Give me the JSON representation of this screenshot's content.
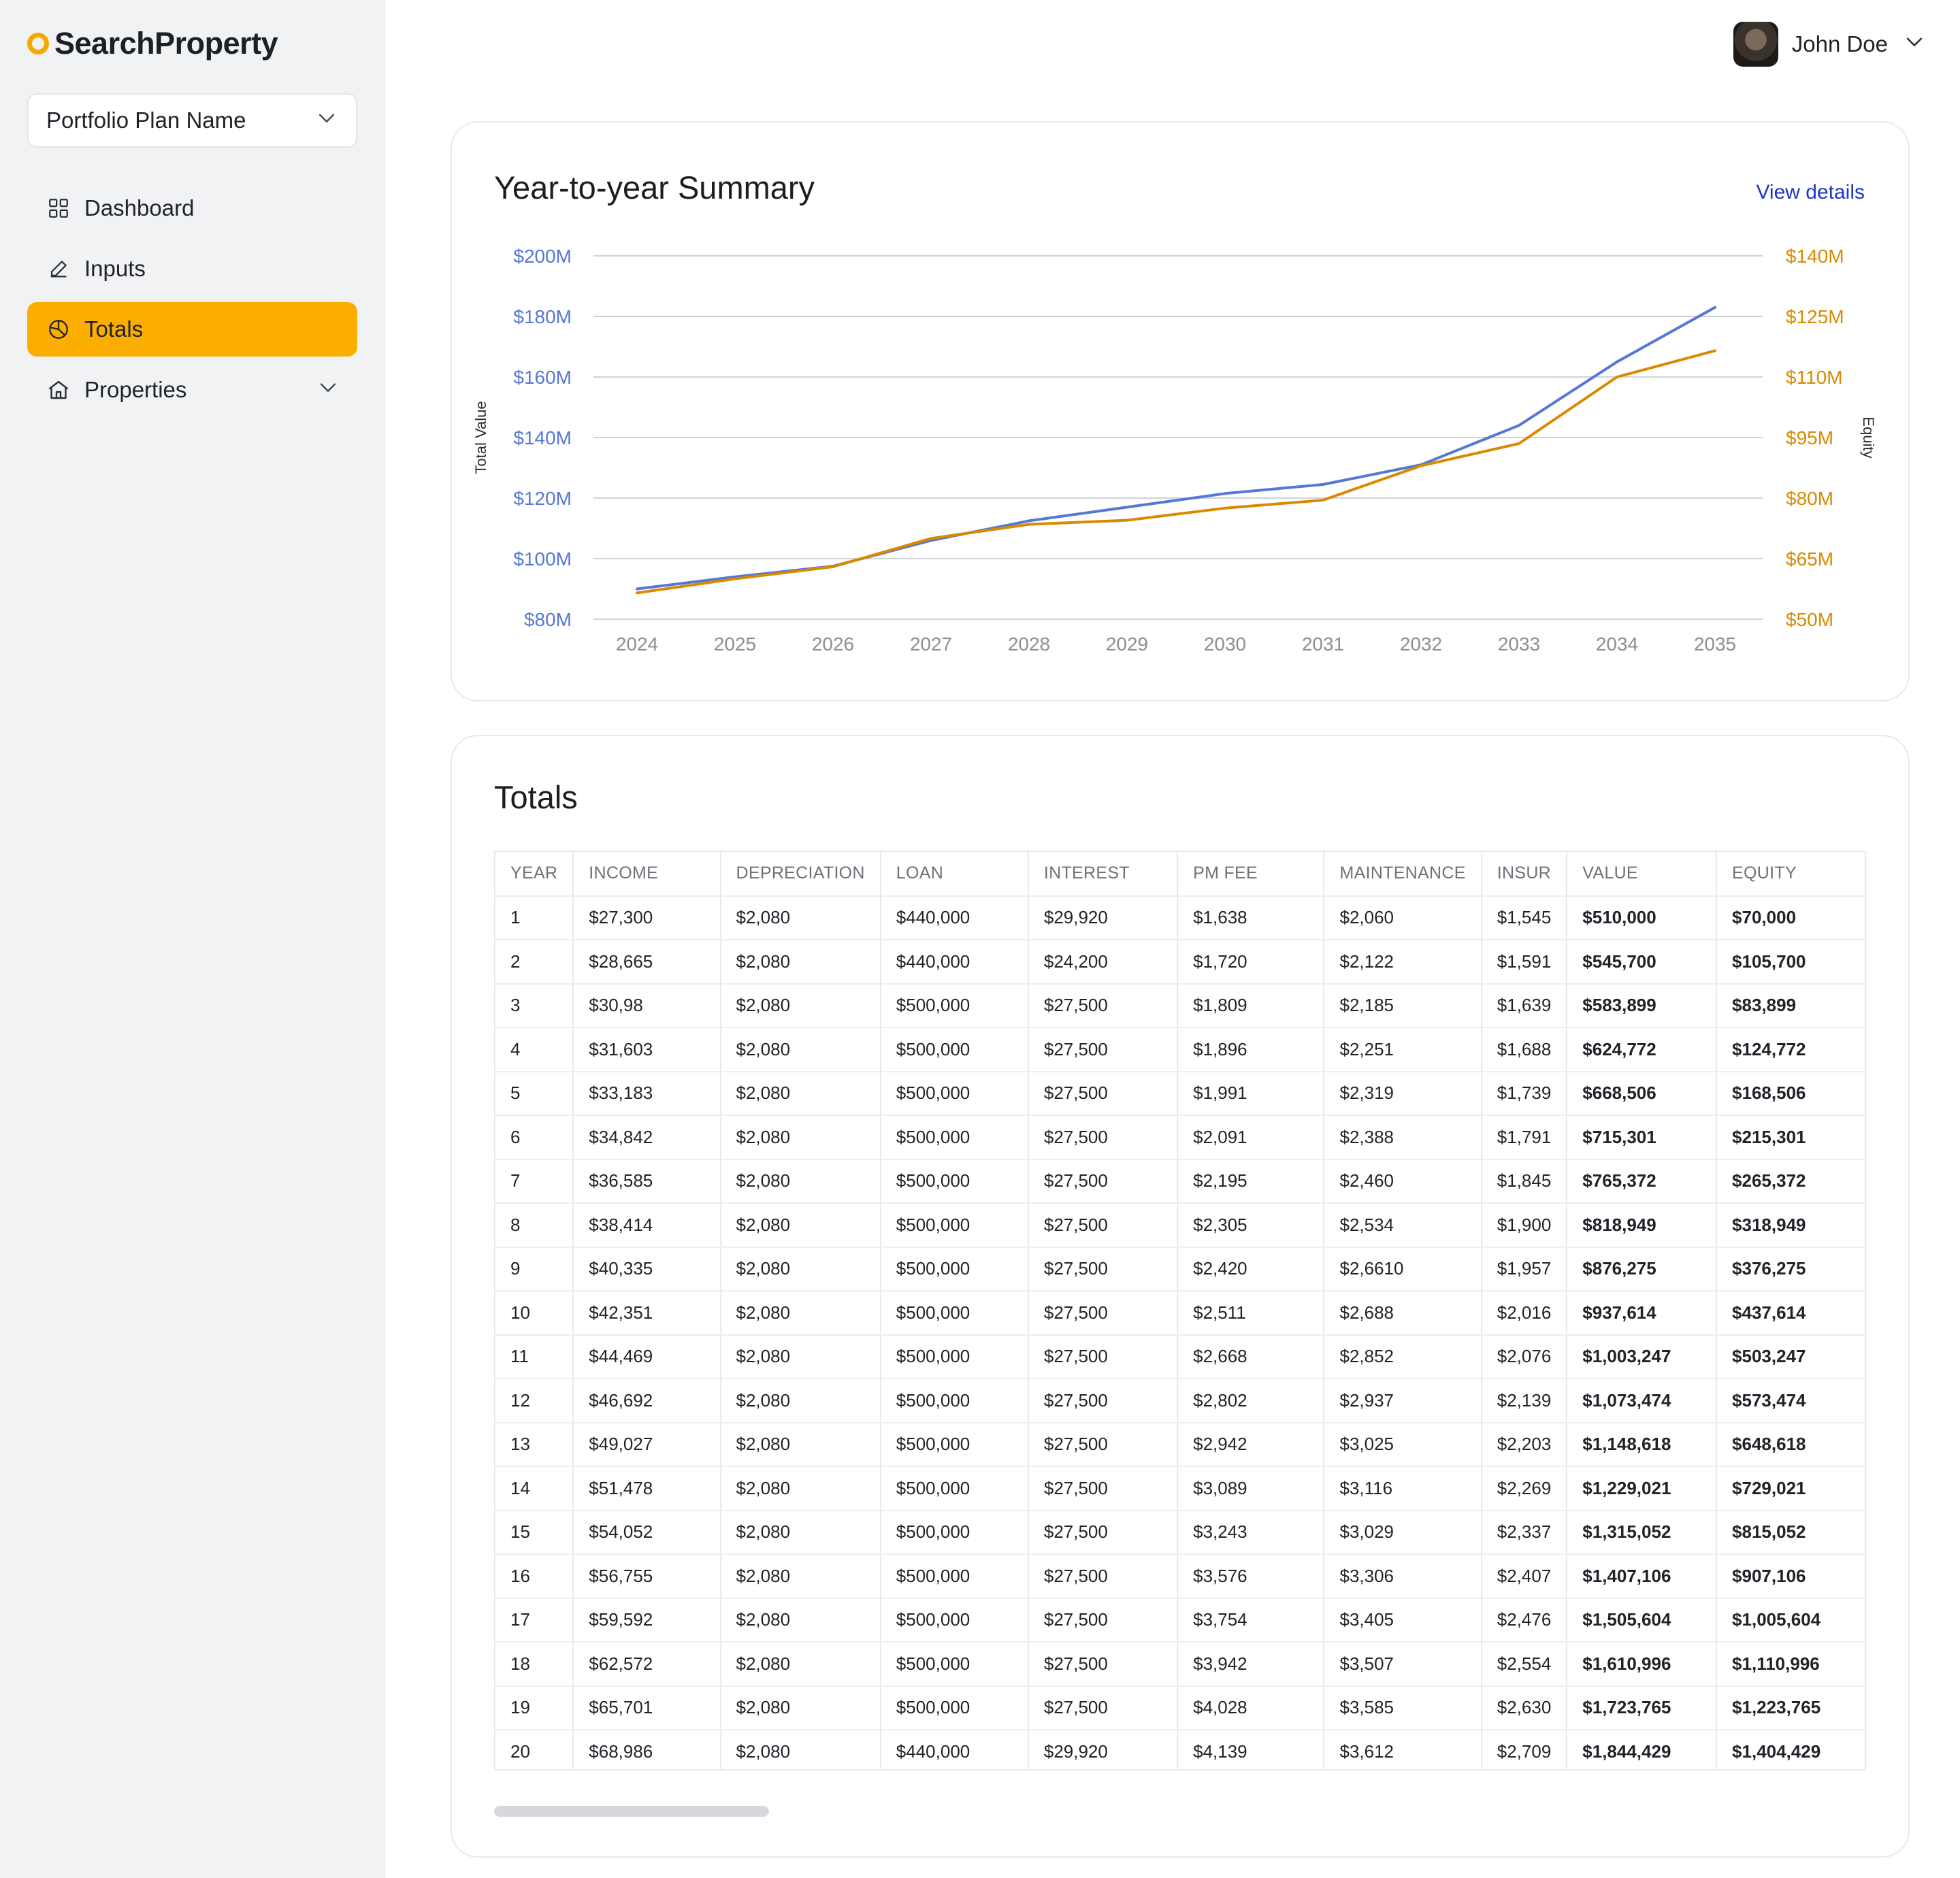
{
  "brand": {
    "name_part1": "SearchPr",
    "name_o": "o",
    "name_part2": "perty",
    "accent": "#fcae00"
  },
  "sidebar": {
    "plan_select": {
      "label": "Portfolio Plan Name"
    },
    "items": [
      {
        "label": "Dashboard",
        "icon": "grid-icon",
        "active": false
      },
      {
        "label": "Inputs",
        "icon": "pencil-icon",
        "active": false
      },
      {
        "label": "Totals",
        "icon": "pie-chart-icon",
        "active": true
      },
      {
        "label": "Properties",
        "icon": "house-icon",
        "active": false
      }
    ]
  },
  "header": {
    "user_name": "John Doe"
  },
  "summary": {
    "title": "Year-to-year Summary",
    "view_details": "View details"
  },
  "chart_data": {
    "type": "line",
    "x": [
      "2024",
      "2025",
      "2026",
      "2027",
      "2028",
      "2029",
      "2030",
      "2031",
      "2032",
      "2033",
      "2034",
      "2035"
    ],
    "series": [
      {
        "name": "Total Value",
        "axis": "left",
        "color": "#5677d6",
        "values": [
          90,
          94,
          97.5,
          106,
          112.5,
          117,
          121.5,
          124.5,
          131,
          144,
          165,
          183
        ]
      },
      {
        "name": "Equity",
        "axis": "right",
        "color": "#d98a00",
        "values": [
          56.5,
          60,
          63,
          70,
          73.5,
          74.5,
          77.5,
          79.5,
          88,
          93.5,
          110,
          116.5
        ]
      }
    ],
    "ylabel": "Total Value",
    "y2label": "Equity",
    "ylim": [
      80,
      200
    ],
    "y2lim": [
      50,
      140
    ],
    "y_ticks": [
      "$80M",
      "$100M",
      "$120M",
      "$140M",
      "$160M",
      "$180M",
      "$200M"
    ],
    "y2_ticks": [
      "$50M",
      "$65M",
      "$80M",
      "$95M",
      "$110M",
      "$125M",
      "$140M"
    ],
    "grid": true,
    "left_axis_color": "#5677d6",
    "right_axis_color": "#d98a00"
  },
  "totals": {
    "title": "Totals",
    "columns": [
      "YEAR",
      "INCOME",
      "DEPRECIATION",
      "LOAN",
      "INTEREST",
      "PM FEE",
      "MAINTENANCE",
      "INSUR",
      "VALUE",
      "EQUITY"
    ],
    "rows": [
      [
        "1",
        "$27,300",
        "$2,080",
        "$440,000",
        "$29,920",
        "$1,638",
        "$2,060",
        "$1,545",
        "$510,000",
        "$70,000"
      ],
      [
        "2",
        "$28,665",
        "$2,080",
        "$440,000",
        "$24,200",
        "$1,720",
        "$2,122",
        "$1,591",
        "$545,700",
        "$105,700"
      ],
      [
        "3",
        "$30,98",
        "$2,080",
        "$500,000",
        "$27,500",
        "$1,809",
        "$2,185",
        "$1,639",
        "$583,899",
        "$83,899"
      ],
      [
        "4",
        "$31,603",
        "$2,080",
        "$500,000",
        "$27,500",
        "$1,896",
        "$2,251",
        "$1,688",
        "$624,772",
        "$124,772"
      ],
      [
        "5",
        "$33,183",
        "$2,080",
        "$500,000",
        "$27,500",
        "$1,991",
        "$2,319",
        "$1,739",
        "$668,506",
        "$168,506"
      ],
      [
        "6",
        "$34,842",
        "$2,080",
        "$500,000",
        "$27,500",
        "$2,091",
        "$2,388",
        "$1,791",
        "$715,301",
        "$215,301"
      ],
      [
        "7",
        "$36,585",
        "$2,080",
        "$500,000",
        "$27,500",
        "$2,195",
        "$2,460",
        "$1,845",
        "$765,372",
        "$265,372"
      ],
      [
        "8",
        "$38,414",
        "$2,080",
        "$500,000",
        "$27,500",
        "$2,305",
        "$2,534",
        "$1,900",
        "$818,949",
        "$318,949"
      ],
      [
        "9",
        "$40,335",
        "$2,080",
        "$500,000",
        "$27,500",
        "$2,420",
        "$2,6610",
        "$1,957",
        "$876,275",
        "$376,275"
      ],
      [
        "10",
        "$42,351",
        "$2,080",
        "$500,000",
        "$27,500",
        "$2,511",
        "$2,688",
        "$2,016",
        "$937,614",
        "$437,614"
      ],
      [
        "11",
        "$44,469",
        "$2,080",
        "$500,000",
        "$27,500",
        "$2,668",
        "$2,852",
        "$2,076",
        "$1,003,247",
        "$503,247"
      ],
      [
        "12",
        "$46,692",
        "$2,080",
        "$500,000",
        "$27,500",
        "$2,802",
        "$2,937",
        "$2,139",
        "$1,073,474",
        "$573,474"
      ],
      [
        "13",
        "$49,027",
        "$2,080",
        "$500,000",
        "$27,500",
        "$2,942",
        "$3,025",
        "$2,203",
        "$1,148,618",
        "$648,618"
      ],
      [
        "14",
        "$51,478",
        "$2,080",
        "$500,000",
        "$27,500",
        "$3,089",
        "$3,116",
        "$2,269",
        "$1,229,021",
        "$729,021"
      ],
      [
        "15",
        "$54,052",
        "$2,080",
        "$500,000",
        "$27,500",
        "$3,243",
        "$3,029",
        "$2,337",
        "$1,315,052",
        "$815,052"
      ],
      [
        "16",
        "$56,755",
        "$2,080",
        "$500,000",
        "$27,500",
        "$3,576",
        "$3,306",
        "$2,407",
        "$1,407,106",
        "$907,106"
      ],
      [
        "17",
        "$59,592",
        "$2,080",
        "$500,000",
        "$27,500",
        "$3,754",
        "$3,405",
        "$2,476",
        "$1,505,604",
        "$1,005,604"
      ],
      [
        "18",
        "$62,572",
        "$2,080",
        "$500,000",
        "$27,500",
        "$3,942",
        "$3,507",
        "$2,554",
        "$1,610,996",
        "$1,110,996"
      ],
      [
        "19",
        "$65,701",
        "$2,080",
        "$500,000",
        "$27,500",
        "$4,028",
        "$3,585",
        "$2,630",
        "$1,723,765",
        "$1,223,765"
      ],
      [
        "20",
        "$68,986",
        "$2,080",
        "$440,000",
        "$29,920",
        "$4,139",
        "$3,612",
        "$2,709",
        "$1,844,429",
        "$1,404,429"
      ]
    ]
  }
}
